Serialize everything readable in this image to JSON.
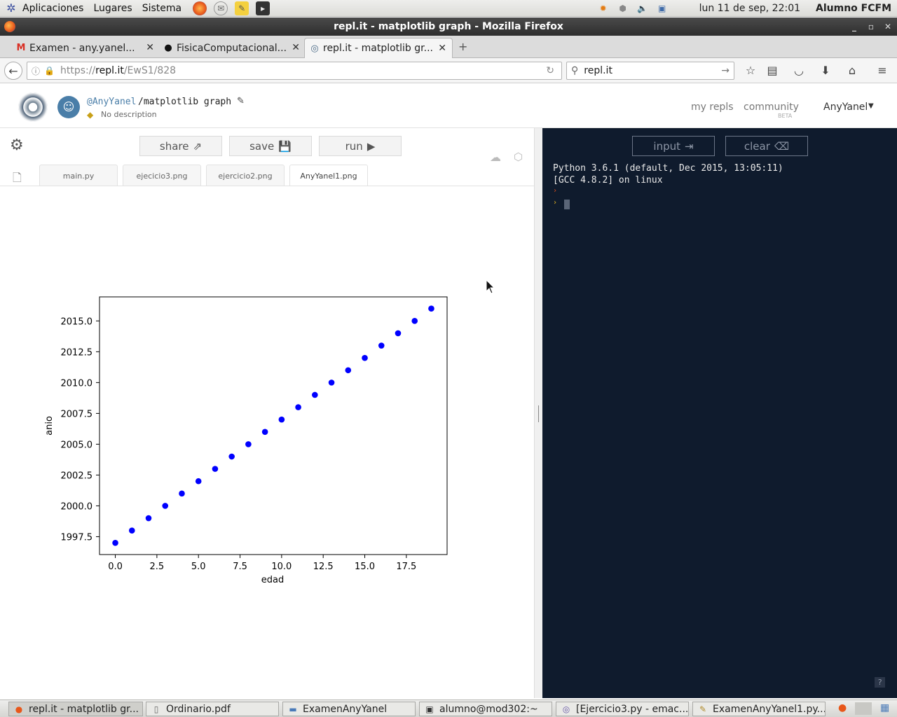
{
  "gnome_panel": {
    "menus": [
      "Aplicaciones",
      "Lugares",
      "Sistema"
    ],
    "datetime": "lun 11 de sep, 22:01",
    "user": "Alumno FCFM"
  },
  "window": {
    "title": "repl.it - matplotlib graph - Mozilla Firefox"
  },
  "tabs": [
    {
      "label": "Examen - any.yanel...",
      "icon": "gmail-icon"
    },
    {
      "label": "FisicaComputacional...",
      "icon": "github-icon"
    },
    {
      "label": "repl.it - matplotlib gr...",
      "icon": "replit-icon"
    }
  ],
  "navbar": {
    "url_prefix": "https://",
    "url_host": "repl.it",
    "url_path": "/EwS1/828",
    "search_value": "repl.it"
  },
  "repl_header": {
    "user": "@AnyYanel",
    "repl_name": "/matplotlib graph",
    "description": "No description",
    "nav": [
      "my repls",
      "community"
    ],
    "community_badge": "BETA",
    "account": "AnyYanel"
  },
  "toolbar": {
    "share": "share",
    "save": "save",
    "run": "run"
  },
  "files": [
    "main.py",
    "ejecicio3.png",
    "ejercicio2.png",
    "AnyYanel1.png"
  ],
  "console": {
    "input_label": "input",
    "clear_label": "clear",
    "lines": [
      "Python 3.6.1 (default, Dec 2015, 13:05:11)",
      "[GCC 4.8.2] on linux"
    ],
    "help": "?"
  },
  "chart_data": {
    "type": "scatter",
    "x": [
      0,
      1,
      2,
      3,
      4,
      5,
      6,
      7,
      8,
      9,
      10,
      11,
      12,
      13,
      14,
      15,
      16,
      17,
      18,
      19
    ],
    "y": [
      1997,
      1998,
      1999,
      2000,
      2001,
      2002,
      2003,
      2004,
      2005,
      2006,
      2007,
      2008,
      2009,
      2010,
      2011,
      2012,
      2013,
      2014,
      2015,
      2016
    ],
    "xlabel": "edad",
    "ylabel": "anio",
    "xlim": [
      -0.95,
      19.95
    ],
    "ylim": [
      1996.05,
      2016.95
    ],
    "xticks": [
      "0.0",
      "2.5",
      "5.0",
      "7.5",
      "10.0",
      "12.5",
      "15.0",
      "17.5"
    ],
    "yticks": [
      "1997.5",
      "2000.0",
      "2002.5",
      "2005.0",
      "2007.5",
      "2010.0",
      "2012.5",
      "2015.0"
    ],
    "color": "#0000ff",
    "grid": false
  },
  "taskbar": [
    {
      "label": "repl.it - matplotlib gr...",
      "icon": "firefox-icon"
    },
    {
      "label": "Ordinario.pdf",
      "icon": "pdf-icon"
    },
    {
      "label": "ExamenAnyYanel",
      "icon": "folder-icon"
    },
    {
      "label": "alumno@mod302:~",
      "icon": "terminal-icon"
    },
    {
      "label": "[Ejercicio3.py - emac...",
      "icon": "emacs-icon"
    },
    {
      "label": "ExamenAnyYanel1.py...",
      "icon": "editor-icon"
    }
  ]
}
